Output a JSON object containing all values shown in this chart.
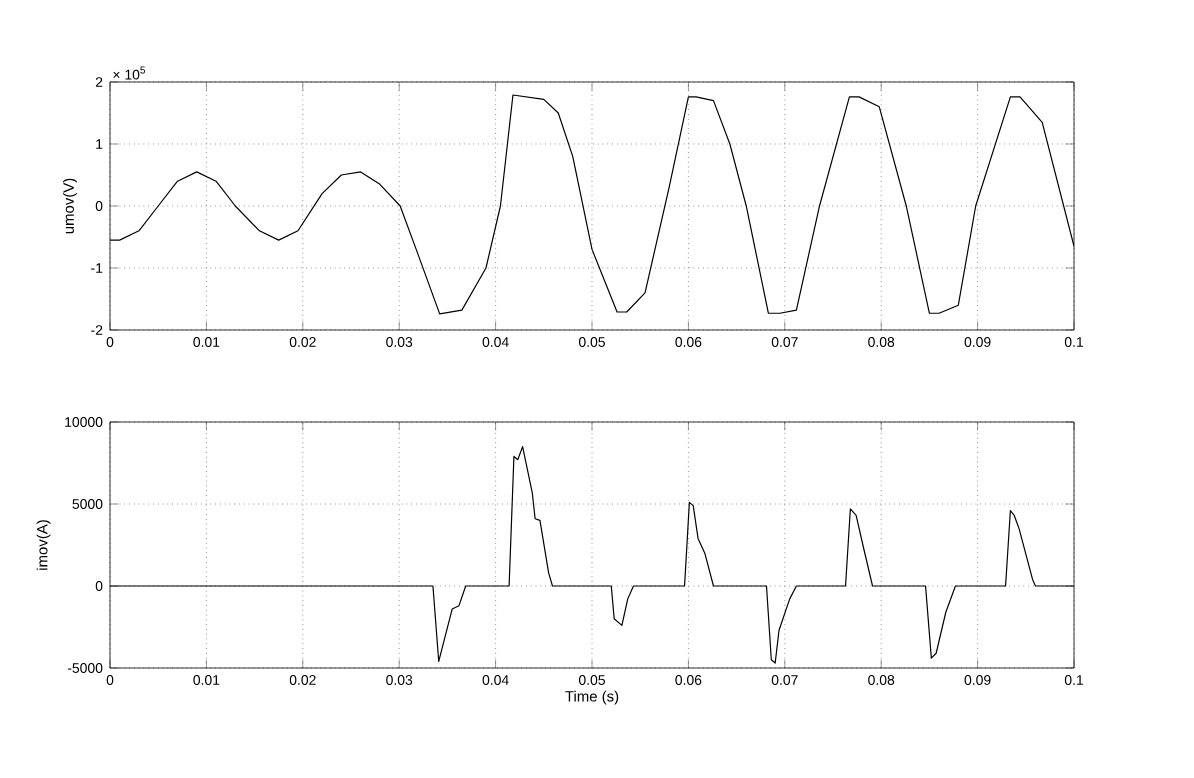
{
  "chart_data": [
    {
      "type": "line",
      "ylabel": "umov(V)",
      "annotations": [
        "× 10$^{5}$"
      ],
      "xlim": [
        0,
        0.1
      ],
      "ylim": [
        -2,
        2
      ],
      "xticks": [
        0,
        0.01,
        0.02,
        0.03,
        0.04,
        0.05,
        0.06,
        0.07,
        0.08,
        0.09,
        0.1
      ],
      "yticks": [
        -2,
        -1,
        0,
        1,
        2
      ],
      "grid": true,
      "series": [
        {
          "color": "#000000",
          "x": [
            0,
            0.001,
            0.003,
            0.005,
            0.007,
            0.009,
            0.011,
            0.013,
            0.0155,
            0.0175,
            0.0195,
            0.022,
            0.024,
            0.026,
            0.028,
            0.0301,
            0.032,
            0.0342,
            0.0365,
            0.039,
            0.0405,
            0.0418,
            0.045,
            0.0465,
            0.048,
            0.05,
            0.0526,
            0.0536,
            0.0555,
            0.058,
            0.06,
            0.0608,
            0.0626,
            0.0643,
            0.066,
            0.0683,
            0.0695,
            0.0712,
            0.0736,
            0.0767,
            0.0777,
            0.0798,
            0.0826,
            0.085,
            0.086,
            0.088,
            0.0898,
            0.0934,
            0.0944,
            0.0967,
            0.1
          ],
          "values": [
            -0.55,
            -0.55,
            -0.4,
            0,
            0.4,
            0.55,
            0.4,
            0,
            -0.4,
            -0.55,
            -0.4,
            0.2,
            0.5,
            0.55,
            0.35,
            0,
            -0.8,
            -1.74,
            -1.68,
            -1.0,
            0,
            1.79,
            1.72,
            1.5,
            0.8,
            -0.7,
            -1.71,
            -1.71,
            -1.4,
            0.3,
            1.76,
            1.76,
            1.7,
            1.0,
            0,
            -1.73,
            -1.73,
            -1.68,
            0,
            1.76,
            1.76,
            1.6,
            0,
            -1.73,
            -1.73,
            -1.6,
            0,
            1.76,
            1.76,
            1.35,
            -0.65
          ]
        }
      ]
    },
    {
      "type": "line",
      "xlabel": "Time (s)",
      "ylabel": "imov(A)",
      "xlim": [
        0,
        0.1
      ],
      "ylim": [
        -5000,
        10000
      ],
      "xticks": [
        0,
        0.01,
        0.02,
        0.03,
        0.04,
        0.05,
        0.06,
        0.07,
        0.08,
        0.09,
        0.1
      ],
      "yticks": [
        -5000,
        0,
        5000,
        10000
      ],
      "grid": true,
      "series": [
        {
          "color": "#000000",
          "x": [
            0,
            0.0335,
            0.0341,
            0.0355,
            0.0362,
            0.0369,
            0.0414,
            0.0419,
            0.0423,
            0.0428,
            0.0438,
            0.0441,
            0.0446,
            0.0455,
            0.0459,
            0.052,
            0.0523,
            0.0531,
            0.0537,
            0.0543,
            0.0596,
            0.0601,
            0.0605,
            0.061,
            0.0617,
            0.0626,
            0.0681,
            0.0686,
            0.069,
            0.0694,
            0.0705,
            0.0712,
            0.0763,
            0.0768,
            0.0774,
            0.0781,
            0.0791,
            0.0846,
            0.0852,
            0.0857,
            0.0867,
            0.0877,
            0.0929,
            0.0934,
            0.0938,
            0.0943,
            0.0957,
            0.096,
            0.1
          ],
          "values": [
            0,
            0,
            -4600,
            -1400,
            -1200,
            0,
            0,
            7900,
            7700,
            8500,
            5700,
            4100,
            4000,
            800,
            0,
            0,
            -2000,
            -2400,
            -800,
            0,
            0,
            5100,
            4900,
            2900,
            2000,
            0,
            0,
            -4500,
            -4700,
            -2700,
            -800,
            0,
            0,
            4700,
            4300,
            2500,
            0,
            0,
            -4400,
            -4100,
            -1600,
            0,
            0,
            4600,
            4300,
            3500,
            400,
            0,
            0
          ]
        }
      ]
    }
  ]
}
